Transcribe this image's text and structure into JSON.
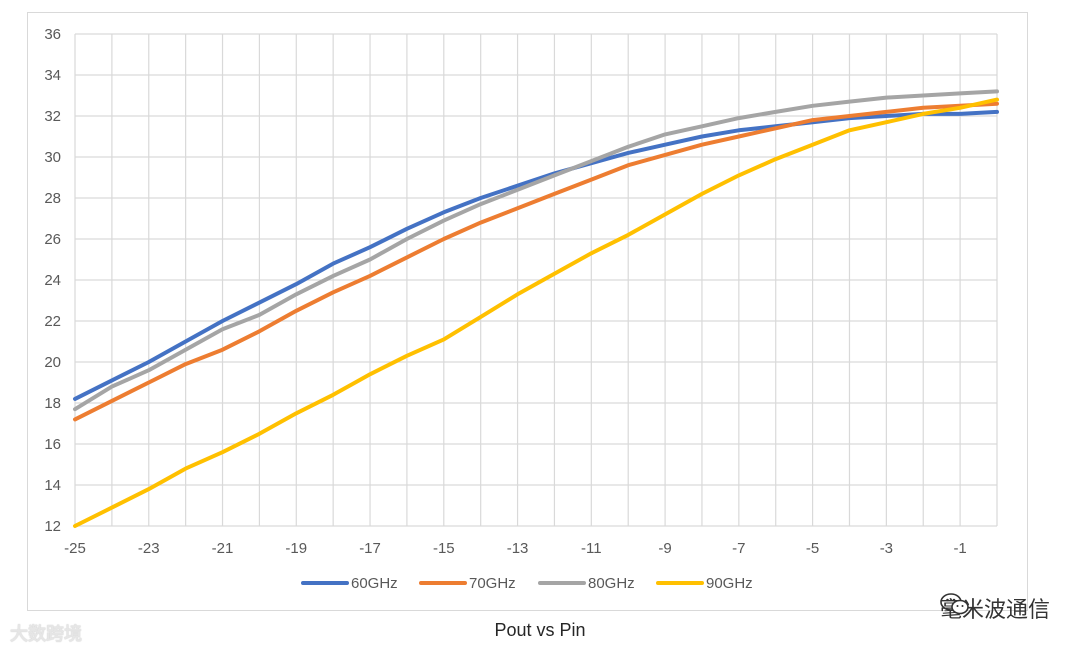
{
  "chart_data": {
    "type": "line",
    "title": "",
    "caption": "Pout vs Pin",
    "xlabel": "",
    "ylabel": "",
    "xlim": [
      -25,
      0
    ],
    "ylim": [
      12,
      36
    ],
    "xticks": [
      -25,
      -23,
      -21,
      -19,
      -17,
      -15,
      -13,
      -11,
      -9,
      -7,
      -5,
      -3,
      -1
    ],
    "yticks": [
      12,
      14,
      16,
      18,
      20,
      22,
      24,
      26,
      28,
      30,
      32,
      34,
      36
    ],
    "grid": true,
    "legend_position": "bottom",
    "x": [
      -25,
      -24,
      -23,
      -22,
      -21,
      -20,
      -19,
      -18,
      -17,
      -16,
      -15,
      -14,
      -13,
      -12,
      -11,
      -10,
      -9,
      -8,
      -7,
      -6,
      -5,
      -4,
      -3,
      -2,
      -1,
      0
    ],
    "series": [
      {
        "name": "60GHz",
        "color": "#4472c4",
        "values": [
          18.2,
          19.1,
          20.0,
          21.0,
          22.0,
          22.9,
          23.8,
          24.8,
          25.6,
          26.5,
          27.3,
          28.0,
          28.6,
          29.2,
          29.7,
          30.2,
          30.6,
          31.0,
          31.3,
          31.5,
          31.7,
          31.9,
          32.0,
          32.1,
          32.1,
          32.2
        ]
      },
      {
        "name": "70GHz",
        "color": "#ed7d31",
        "values": [
          17.2,
          18.1,
          19.0,
          19.9,
          20.6,
          21.5,
          22.5,
          23.4,
          24.2,
          25.1,
          26.0,
          26.8,
          27.5,
          28.2,
          28.9,
          29.6,
          30.1,
          30.6,
          31.0,
          31.4,
          31.8,
          32.0,
          32.2,
          32.4,
          32.5,
          32.6
        ]
      },
      {
        "name": "80GHz",
        "color": "#a5a5a5",
        "values": [
          17.7,
          18.8,
          19.6,
          20.6,
          21.6,
          22.3,
          23.3,
          24.2,
          25.0,
          26.0,
          26.9,
          27.7,
          28.4,
          29.1,
          29.8,
          30.5,
          31.1,
          31.5,
          31.9,
          32.2,
          32.5,
          32.7,
          32.9,
          33.0,
          33.1,
          33.2
        ]
      },
      {
        "name": "90GHz",
        "color": "#ffc000",
        "values": [
          12.0,
          12.9,
          13.8,
          14.8,
          15.6,
          16.5,
          17.5,
          18.4,
          19.4,
          20.3,
          21.1,
          22.2,
          23.3,
          24.3,
          25.3,
          26.2,
          27.2,
          28.2,
          29.1,
          29.9,
          30.6,
          31.3,
          31.7,
          32.1,
          32.4,
          32.8
        ]
      }
    ]
  },
  "watermarks": {
    "left": "大数跨境",
    "right": "毫米波通信"
  }
}
